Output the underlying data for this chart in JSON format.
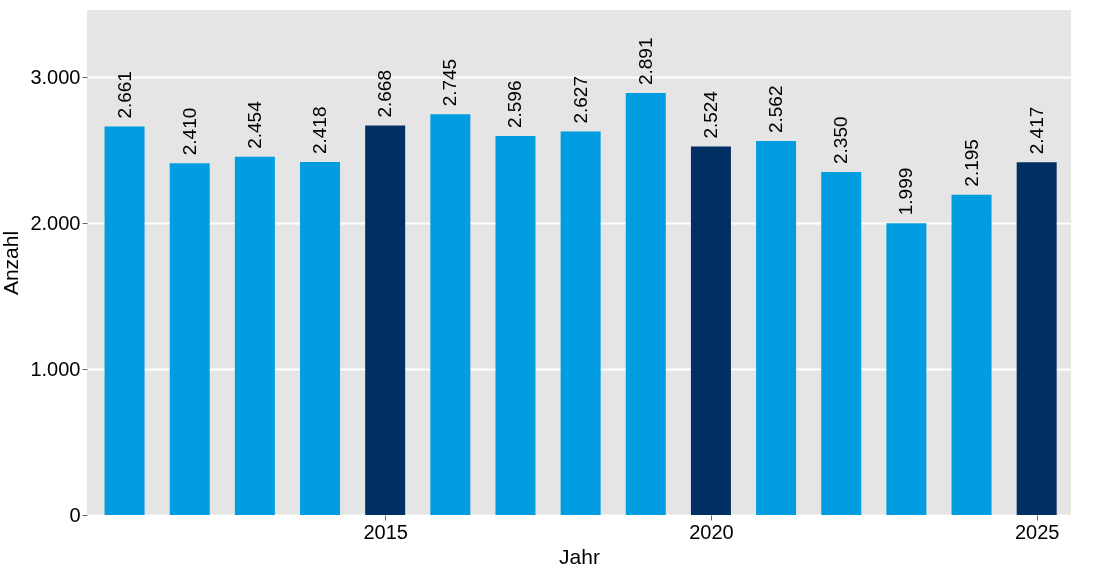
{
  "chart_data": {
    "type": "bar",
    "xlabel": "Jahr",
    "ylabel": "Anzahl",
    "x": [
      2011,
      2012,
      2013,
      2014,
      2015,
      2016,
      2017,
      2018,
      2019,
      2020,
      2021,
      2022,
      2023,
      2024,
      2025
    ],
    "values": [
      2661,
      2410,
      2454,
      2418,
      2668,
      2745,
      2596,
      2627,
      2891,
      2524,
      2562,
      2350,
      1999,
      2195,
      2417
    ],
    "value_labels": [
      "2.661",
      "2.410",
      "2.454",
      "2.418",
      "2.668",
      "2.745",
      "2.596",
      "2.627",
      "2.891",
      "2.524",
      "2.562",
      "2.350",
      "1.999",
      "2.195",
      "2.417"
    ],
    "colors": [
      "#009de0",
      "#009de0",
      "#009de0",
      "#009de0",
      "#003063",
      "#009de0",
      "#009de0",
      "#009de0",
      "#009de0",
      "#003063",
      "#009de0",
      "#009de0",
      "#009de0",
      "#009de0",
      "#003063"
    ],
    "xlim": [
      2010.5,
      2025.45
    ],
    "xticks": [
      2015,
      2020,
      2025
    ],
    "ylim": [
      0,
      3460
    ],
    "yticks": [
      0,
      {
        "value": 1000,
        "label": "1.000"
      },
      {
        "value": 2000,
        "label": "2.000"
      },
      {
        "value": 3000,
        "label": "3.000"
      }
    ],
    "grid": "y"
  }
}
